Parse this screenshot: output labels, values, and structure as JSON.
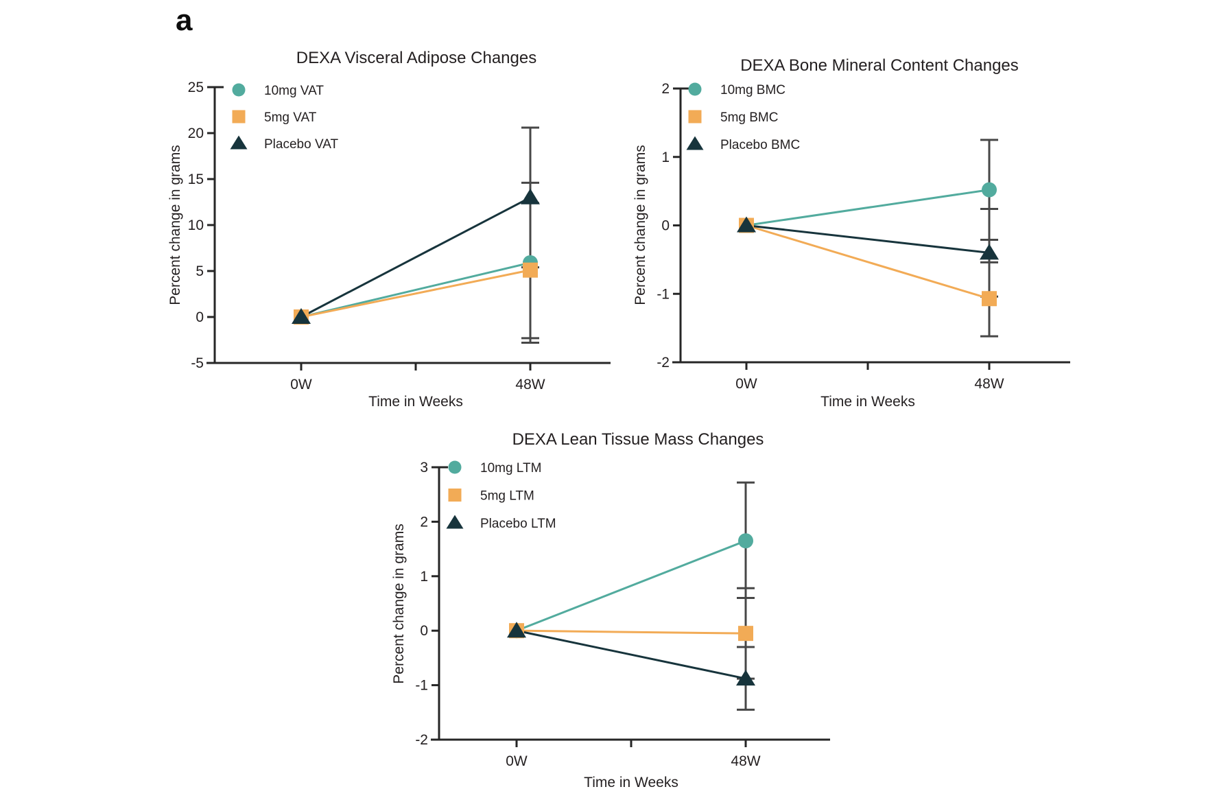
{
  "panel_label": "a",
  "colors": {
    "teal": "#52ab9e",
    "orange": "#f2ab56",
    "dark_green": "#17343c",
    "error_bar": "#474747",
    "axis": "#262626",
    "text": "#231f20"
  },
  "chart_data": [
    {
      "type": "line",
      "title": "DEXA Visceral Adipose Changes",
      "xlabel": "Time in Weeks",
      "ylabel": "Percent change in grams",
      "categories": [
        "0W",
        "48W"
      ],
      "ylim": [
        -5,
        25
      ],
      "yticks": [
        25,
        20,
        15,
        10,
        5,
        0,
        -5
      ],
      "legend_position": "top-left-inside",
      "grid": false,
      "series": [
        {
          "name": "10mg VAT",
          "marker": "circle",
          "color": "#52ab9e",
          "values": [
            0,
            5.9
          ],
          "error_48w": [
            -2.8,
            14.6
          ]
        },
        {
          "name": "5mg VAT",
          "marker": "square",
          "color": "#f2ab56",
          "values": [
            0,
            5.1
          ],
          "error_48w": [
            -2.3,
            12.4
          ]
        },
        {
          "name": "Placebo VAT",
          "marker": "triangle",
          "color": "#17343c",
          "values": [
            0,
            13.0
          ],
          "error_48w": [
            5.4,
            20.6
          ]
        }
      ]
    },
    {
      "type": "line",
      "title": "DEXA Bone Mineral Content Changes",
      "xlabel": "Time in Weeks",
      "ylabel": "Percent change in grams",
      "categories": [
        "0W",
        "48W"
      ],
      "ylim": [
        -2,
        2
      ],
      "yticks": [
        2,
        1,
        0,
        -1,
        -2
      ],
      "legend_position": "top-left-inside",
      "grid": false,
      "series": [
        {
          "name": "10mg BMC",
          "marker": "circle",
          "color": "#52ab9e",
          "values": [
            0,
            0.52
          ],
          "error_48w": [
            -0.21,
            1.25
          ]
        },
        {
          "name": "5mg BMC",
          "marker": "square",
          "color": "#f2ab56",
          "values": [
            0,
            -1.07
          ],
          "error_48w": [
            -1.62,
            -0.54
          ]
        },
        {
          "name": "Placebo BMC",
          "marker": "triangle",
          "color": "#17343c",
          "values": [
            0,
            -0.4
          ],
          "error_48w": [
            -1.04,
            0.24
          ]
        }
      ]
    },
    {
      "type": "line",
      "title": "DEXA Lean Tissue Mass Changes",
      "xlabel": "Time in Weeks",
      "ylabel": "Percent change in grams",
      "categories": [
        "0W",
        "48W"
      ],
      "ylim": [
        -2,
        3
      ],
      "yticks": [
        3,
        2,
        1,
        0,
        -1,
        -2
      ],
      "legend_position": "top-left-inside",
      "grid": false,
      "series": [
        {
          "name": "10mg LTM",
          "marker": "circle",
          "color": "#52ab9e",
          "values": [
            0,
            1.65
          ],
          "error_48w": [
            0.6,
            2.72
          ]
        },
        {
          "name": "5mg LTM",
          "marker": "square",
          "color": "#f2ab56",
          "values": [
            0,
            -0.05
          ],
          "error_48w": [
            -0.88,
            0.78
          ]
        },
        {
          "name": "Placebo LTM",
          "marker": "triangle",
          "color": "#17343c",
          "values": [
            0,
            -0.88
          ],
          "error_48w": [
            -1.45,
            -0.3
          ]
        }
      ]
    }
  ]
}
